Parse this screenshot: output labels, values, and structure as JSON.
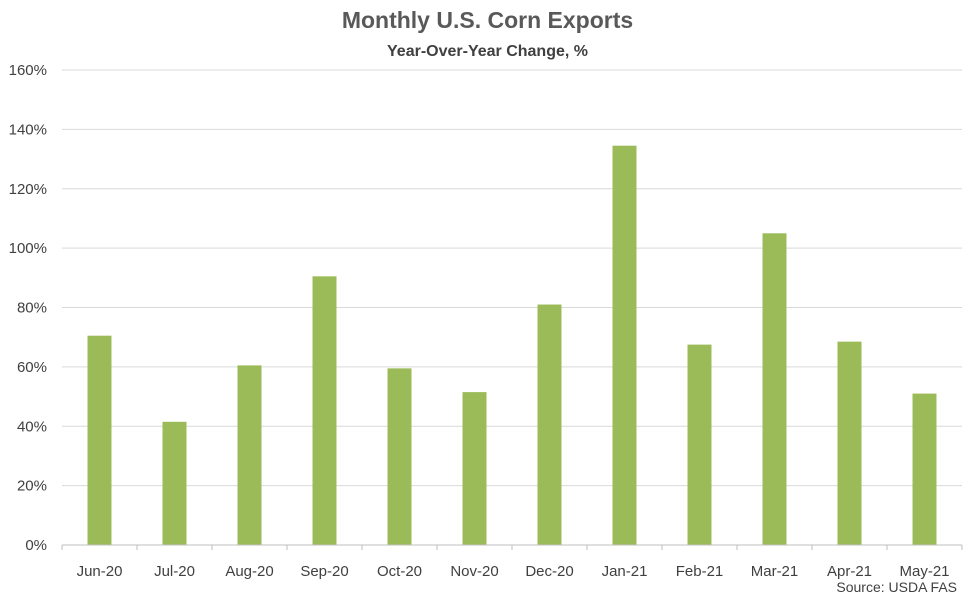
{
  "chart_data": {
    "type": "bar",
    "title": "Monthly U.S. Corn Exports",
    "subtitle": "Year-Over-Year Change, %",
    "xlabel": "",
    "ylabel": "",
    "categories": [
      "Jun-20",
      "Jul-20",
      "Aug-20",
      "Sep-20",
      "Oct-20",
      "Nov-20",
      "Dec-20",
      "Jan-21",
      "Feb-21",
      "Mar-21",
      "Apr-21",
      "May-21"
    ],
    "values": [
      70.5,
      41.5,
      60.5,
      90.5,
      59.5,
      51.5,
      81,
      134.5,
      67.5,
      105,
      68.5,
      51
    ],
    "ylim": [
      0,
      160
    ],
    "yticks": [
      0,
      20,
      40,
      60,
      80,
      100,
      120,
      140,
      160
    ],
    "ytick_labels": [
      "0%",
      "20%",
      "40%",
      "60%",
      "80%",
      "100%",
      "120%",
      "140%",
      "160%"
    ],
    "grid": true,
    "legend": "none",
    "bar_color": "#9BBB59",
    "source": "Source: USDA FAS"
  }
}
